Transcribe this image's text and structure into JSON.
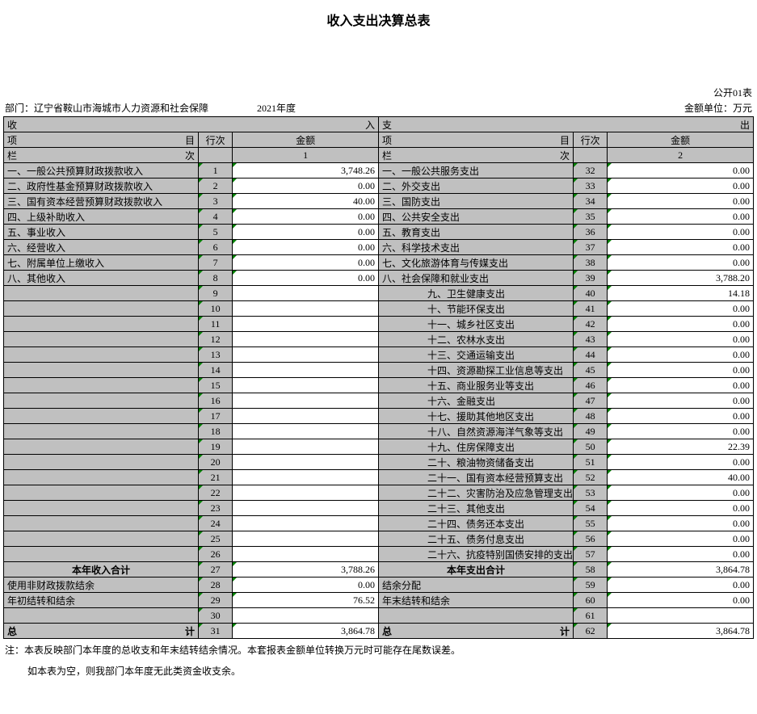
{
  "title": "收入支出决算总表",
  "meta": {
    "dept_label": "部门：",
    "dept_value": "辽宁省鞍山市海城市人力资源和社会保障",
    "year": "2021年度",
    "form_no": "公开01表",
    "unit": "金额单位：万元"
  },
  "headers": {
    "income": "收",
    "income_end": "入",
    "expense": "支",
    "expense_end": "出",
    "item": "项",
    "item_end": "目",
    "rownum": "行次",
    "amount": "金额",
    "col_label": "栏",
    "col_end": "次",
    "one": "1",
    "two": "2"
  },
  "income_rows": [
    {
      "item": "一、一般公共预算财政拨款收入",
      "n": "1",
      "amt": "3,748.26"
    },
    {
      "item": "二、政府性基金预算财政拨款收入",
      "n": "2",
      "amt": "0.00"
    },
    {
      "item": "三、国有资本经营预算财政拨款收入",
      "n": "3",
      "amt": "40.00"
    },
    {
      "item": "四、上级补助收入",
      "n": "4",
      "amt": "0.00"
    },
    {
      "item": "五、事业收入",
      "n": "5",
      "amt": "0.00"
    },
    {
      "item": "六、经营收入",
      "n": "6",
      "amt": "0.00"
    },
    {
      "item": "七、附属单位上缴收入",
      "n": "7",
      "amt": "0.00"
    },
    {
      "item": "八、其他收入",
      "n": "8",
      "amt": "0.00"
    },
    {
      "item": "",
      "n": "9",
      "amt": ""
    },
    {
      "item": "",
      "n": "10",
      "amt": ""
    },
    {
      "item": "",
      "n": "11",
      "amt": ""
    },
    {
      "item": "",
      "n": "12",
      "amt": ""
    },
    {
      "item": "",
      "n": "13",
      "amt": ""
    },
    {
      "item": "",
      "n": "14",
      "amt": ""
    },
    {
      "item": "",
      "n": "15",
      "amt": ""
    },
    {
      "item": "",
      "n": "16",
      "amt": ""
    },
    {
      "item": "",
      "n": "17",
      "amt": ""
    },
    {
      "item": "",
      "n": "18",
      "amt": ""
    },
    {
      "item": "",
      "n": "19",
      "amt": ""
    },
    {
      "item": "",
      "n": "20",
      "amt": ""
    },
    {
      "item": "",
      "n": "21",
      "amt": ""
    },
    {
      "item": "",
      "n": "22",
      "amt": ""
    },
    {
      "item": "",
      "n": "23",
      "amt": ""
    },
    {
      "item": "",
      "n": "24",
      "amt": ""
    },
    {
      "item": "",
      "n": "25",
      "amt": ""
    },
    {
      "item": "",
      "n": "26",
      "amt": ""
    }
  ],
  "expense_rows": [
    {
      "item": "一、一般公共服务支出",
      "n": "32",
      "amt": "0.00"
    },
    {
      "item": "二、外交支出",
      "n": "33",
      "amt": "0.00"
    },
    {
      "item": "三、国防支出",
      "n": "34",
      "amt": "0.00"
    },
    {
      "item": "四、公共安全支出",
      "n": "35",
      "amt": "0.00"
    },
    {
      "item": "五、教育支出",
      "n": "36",
      "amt": "0.00"
    },
    {
      "item": "六、科学技术支出",
      "n": "37",
      "amt": "0.00"
    },
    {
      "item": "七、文化旅游体育与传媒支出",
      "n": "38",
      "amt": "0.00"
    },
    {
      "item": "八、社会保障和就业支出",
      "n": "39",
      "amt": "3,788.20"
    },
    {
      "item": "九、卫生健康支出",
      "n": "40",
      "amt": "14.18"
    },
    {
      "item": "十、节能环保支出",
      "n": "41",
      "amt": "0.00"
    },
    {
      "item": "十一、城乡社区支出",
      "n": "42",
      "amt": "0.00"
    },
    {
      "item": "十二、农林水支出",
      "n": "43",
      "amt": "0.00"
    },
    {
      "item": "十三、交通运输支出",
      "n": "44",
      "amt": "0.00"
    },
    {
      "item": "十四、资源勘探工业信息等支出",
      "n": "45",
      "amt": "0.00"
    },
    {
      "item": "十五、商业服务业等支出",
      "n": "46",
      "amt": "0.00"
    },
    {
      "item": "十六、金融支出",
      "n": "47",
      "amt": "0.00"
    },
    {
      "item": "十七、援助其他地区支出",
      "n": "48",
      "amt": "0.00"
    },
    {
      "item": "十八、自然资源海洋气象等支出",
      "n": "49",
      "amt": "0.00"
    },
    {
      "item": "十九、住房保障支出",
      "n": "50",
      "amt": "22.39"
    },
    {
      "item": "二十、粮油物资储备支出",
      "n": "51",
      "amt": "0.00"
    },
    {
      "item": "二十一、国有资本经营预算支出",
      "n": "52",
      "amt": "40.00"
    },
    {
      "item": "二十二、灾害防治及应急管理支出",
      "n": "53",
      "amt": "0.00"
    },
    {
      "item": "二十三、其他支出",
      "n": "54",
      "amt": "0.00"
    },
    {
      "item": "二十四、债务还本支出",
      "n": "55",
      "amt": "0.00"
    },
    {
      "item": "二十五、债务付息支出",
      "n": "56",
      "amt": "0.00"
    },
    {
      "item": "二十六、抗疫特别国债安排的支出",
      "n": "57",
      "amt": "0.00"
    }
  ],
  "subtotals": {
    "income_label": "本年收入合计",
    "income_n": "27",
    "income_amt": "3,788.26",
    "expense_label": "本年支出合计",
    "expense_n": "58",
    "expense_amt": "3,864.78"
  },
  "extras": [
    {
      "l_item": "使用非财政拨款结余",
      "l_n": "28",
      "l_amt": "0.00",
      "r_item": "结余分配",
      "r_n": "59",
      "r_amt": "0.00"
    },
    {
      "l_item": "年初结转和结余",
      "l_n": "29",
      "l_amt": "76.52",
      "r_item": "年末结转和结余",
      "r_n": "60",
      "r_amt": "0.00"
    },
    {
      "l_item": "",
      "l_n": "30",
      "l_amt": "",
      "r_item": "",
      "r_n": "61",
      "r_amt": ""
    }
  ],
  "totals": {
    "l_label_start": "总",
    "l_label_end": "计",
    "l_n": "31",
    "l_amt": "3,864.78",
    "r_label_start": "总",
    "r_label_end": "计",
    "r_n": "62",
    "r_amt": "3,864.78"
  },
  "notes": {
    "line1": "注：本表反映部门本年度的总收支和年末结转结余情况。本套报表金额单位转换万元时可能存在尾数误差。",
    "line2": "如本表为空，则我部门本年度无此类资金收支余。"
  },
  "colors": {
    "header_bg": "#c0c0c0",
    "border": "#000000",
    "tri": "#008000"
  }
}
